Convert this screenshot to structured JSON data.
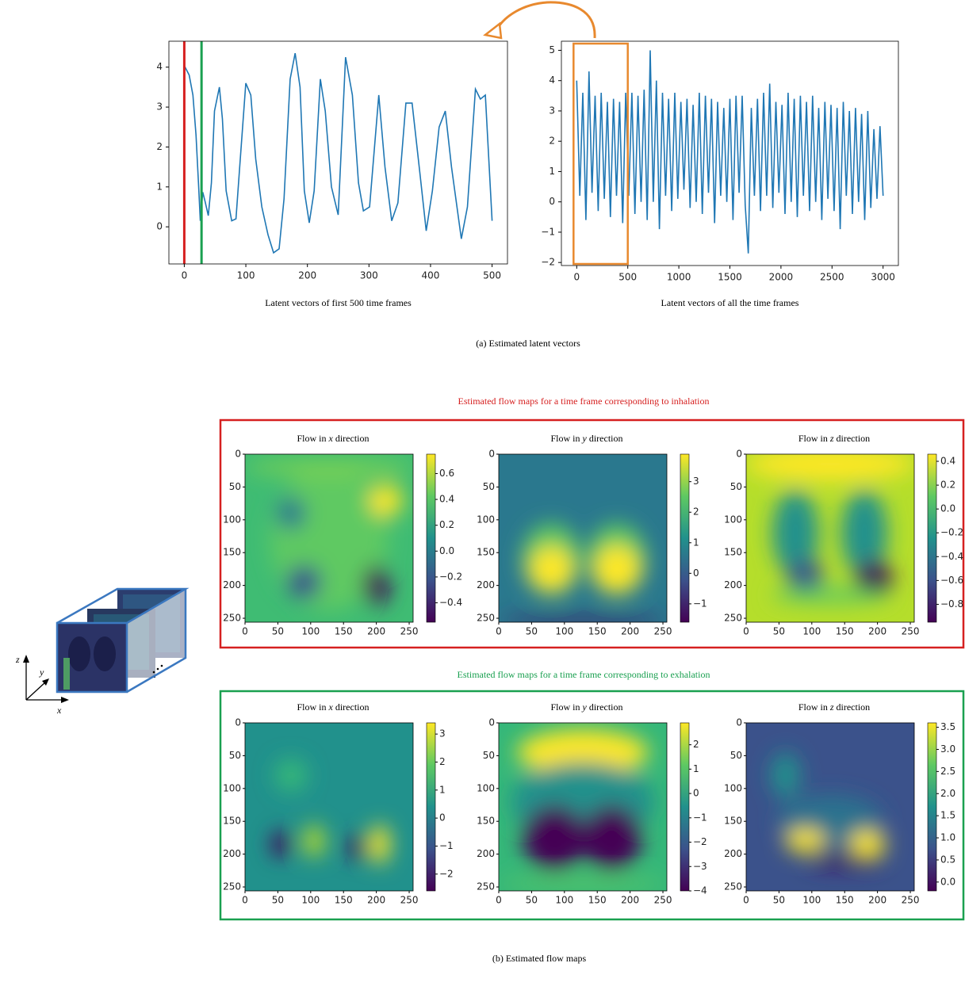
{
  "charts": [
    {
      "type": "line",
      "caption": "Latent vectors of first 500 time frames",
      "color": "#1f77b4",
      "xlim": [
        -25,
        525
      ],
      "ylim": [
        -0.93,
        4.65
      ],
      "xticks": [
        0,
        100,
        200,
        300,
        400,
        500
      ],
      "yticks": [
        0,
        1,
        2,
        3,
        4
      ],
      "x": [
        0,
        8,
        14,
        19,
        23,
        26,
        30,
        34,
        39,
        44,
        49,
        57,
        62,
        68,
        77,
        84,
        90,
        100,
        108,
        116,
        126,
        136,
        145,
        154,
        162,
        172,
        180,
        188,
        195,
        203,
        211,
        221,
        229,
        239,
        250,
        262,
        273,
        283,
        291,
        301,
        316,
        326,
        337,
        347,
        360,
        370,
        383,
        393,
        403,
        414,
        424,
        434,
        450,
        460,
        473,
        481,
        489,
        500
      ],
      "values": [
        4.04,
        3.8,
        3.3,
        2.3,
        1.1,
        0.15,
        0.87,
        0.62,
        0.28,
        1.1,
        2.9,
        3.5,
        2.7,
        0.9,
        0.15,
        0.2,
        1.5,
        3.6,
        3.3,
        1.7,
        0.5,
        -0.2,
        -0.65,
        -0.55,
        0.7,
        3.7,
        4.35,
        3.5,
        0.9,
        0.1,
        0.9,
        3.7,
        2.9,
        1.0,
        0.3,
        4.25,
        3.3,
        1.1,
        0.4,
        0.5,
        3.3,
        1.5,
        0.15,
        0.6,
        3.1,
        3.1,
        1.3,
        -0.1,
        0.9,
        2.5,
        2.9,
        1.5,
        -0.3,
        0.5,
        3.45,
        3.2,
        3.3,
        0.15
      ],
      "markers": [
        {
          "x": 0,
          "color": "#d62020"
        },
        {
          "x": 28,
          "color": "#1aa050"
        }
      ]
    },
    {
      "type": "line",
      "caption": "Latent vectors of all the time frames",
      "color": "#1f77b4",
      "xlim": [
        -150,
        3150
      ],
      "ylim": [
        -2.1,
        5.3
      ],
      "xticks": [
        0,
        500,
        1000,
        1500,
        2000,
        2500,
        3000
      ],
      "yticks": [
        {
          "value": -2,
          "label": "−2"
        },
        {
          "value": -1,
          "label": "−1"
        },
        0,
        1,
        2,
        3,
        4,
        5
      ],
      "x": [
        0,
        30,
        60,
        90,
        120,
        150,
        180,
        210,
        240,
        270,
        300,
        330,
        360,
        390,
        420,
        450,
        480,
        510,
        540,
        570,
        600,
        630,
        660,
        690,
        720,
        750,
        780,
        810,
        840,
        870,
        900,
        930,
        960,
        990,
        1020,
        1050,
        1080,
        1110,
        1140,
        1170,
        1200,
        1230,
        1260,
        1290,
        1320,
        1350,
        1380,
        1410,
        1440,
        1470,
        1500,
        1530,
        1560,
        1590,
        1620,
        1650,
        1680,
        1710,
        1740,
        1770,
        1800,
        1830,
        1860,
        1890,
        1920,
        1950,
        1980,
        2010,
        2040,
        2070,
        2100,
        2130,
        2160,
        2190,
        2220,
        2250,
        2280,
        2310,
        2340,
        2370,
        2400,
        2430,
        2460,
        2490,
        2520,
        2550,
        2580,
        2610,
        2640,
        2670,
        2700,
        2730,
        2760,
        2790,
        2820,
        2850,
        2880,
        2910,
        2940,
        2970,
        3000
      ],
      "values": [
        4.0,
        0.2,
        3.6,
        -0.6,
        4.3,
        0.3,
        3.5,
        -0.3,
        3.6,
        0.1,
        3.3,
        -0.5,
        3.4,
        0.2,
        3.3,
        -0.7,
        3.6,
        0.2,
        3.6,
        -0.4,
        3.5,
        0.0,
        3.7,
        -0.6,
        5.0,
        0.0,
        4.0,
        -0.9,
        3.6,
        0.2,
        3.4,
        -0.3,
        3.6,
        0.1,
        3.3,
        0.4,
        3.4,
        -0.2,
        3.2,
        0.0,
        3.6,
        -0.4,
        3.5,
        0.3,
        3.4,
        -0.7,
        3.3,
        0.2,
        3.1,
        0.0,
        3.4,
        -0.6,
        3.5,
        0.3,
        3.5,
        -0.1,
        -1.7,
        3.1,
        0.2,
        3.4,
        -0.3,
        3.6,
        0.2,
        3.9,
        -0.2,
        3.3,
        0.3,
        3.2,
        -0.4,
        3.6,
        0.0,
        3.4,
        -0.5,
        3.5,
        0.2,
        3.3,
        -0.3,
        3.5,
        0.0,
        3.1,
        -0.6,
        3.3,
        0.1,
        3.2,
        -0.3,
        3.1,
        -0.9,
        3.3,
        0.2,
        3.0,
        -0.4,
        3.1,
        0.0,
        2.9,
        -0.6,
        3.0,
        -0.2,
        2.4,
        0.1,
        2.5,
        0.2
      ],
      "highlight": [
        0,
        500
      ],
      "highlight_color": "#e8892e"
    }
  ],
  "caption_a": "(a) Estimated latent vectors",
  "axes_icon": [
    "z",
    "y",
    "x"
  ],
  "image_xlim": [
    0,
    256
  ],
  "image_ylim": [
    0,
    256
  ],
  "image_ticks": [
    0,
    50,
    100,
    150,
    200,
    250
  ],
  "flow_groups": [
    {
      "title": "Estimated flow maps for a time frame corresponding to inhalation",
      "color": "#d62020",
      "panels": [
        {
          "prefix": "Flow in ",
          "axis": "x",
          "suffix": " direction",
          "clim": [
            -0.55,
            0.75
          ],
          "cticks": [
            {
              "value": -0.4,
              "label": "−0.4"
            },
            {
              "value": -0.2,
              "label": "−0.2"
            },
            {
              "value": 0,
              "label": "0.0"
            },
            0.2,
            0.4,
            0.6
          ]
        },
        {
          "prefix": "Flow in ",
          "axis": "y",
          "suffix": " direction",
          "clim": [
            -1.6,
            3.9
          ],
          "cticks": [
            {
              "value": -1,
              "label": "−1"
            },
            0,
            1,
            2,
            3
          ]
        },
        {
          "prefix": "Flow in ",
          "axis": "z",
          "suffix": " direction",
          "clim": [
            -0.95,
            0.46
          ],
          "cticks": [
            {
              "value": -0.8,
              "label": "−0.8"
            },
            {
              "value": -0.6,
              "label": "−0.6"
            },
            {
              "value": -0.4,
              "label": "−0.4"
            },
            {
              "value": -0.2,
              "label": "−0.2"
            },
            {
              "value": 0,
              "label": "0.0"
            },
            0.2,
            0.4
          ]
        }
      ]
    },
    {
      "title": "Estimated flow maps for a time frame corresponding to exhalation",
      "color": "#1aa050",
      "panels": [
        {
          "prefix": "Flow in ",
          "axis": "x",
          "suffix": " direction",
          "clim": [
            -2.6,
            3.4
          ],
          "cticks": [
            {
              "value": -2,
              "label": "−2"
            },
            {
              "value": -1,
              "label": "−1"
            },
            0,
            1,
            2,
            3
          ]
        },
        {
          "prefix": "Flow in ",
          "axis": "y",
          "suffix": " direction",
          "clim": [
            -4,
            2.9
          ],
          "cticks": [
            {
              "value": -4,
              "label": "−4"
            },
            {
              "value": -3,
              "label": "−3"
            },
            {
              "value": -2,
              "label": "−2"
            },
            {
              "value": -1,
              "label": "−1"
            },
            0,
            1,
            2
          ]
        },
        {
          "prefix": "Flow in ",
          "axis": "z",
          "suffix": " direction",
          "clim": [
            -0.2,
            3.6
          ],
          "cticks": [
            {
              "value": 0,
              "label": "0.0"
            },
            0.5,
            {
              "value": 1,
              "label": "1.0"
            },
            1.5,
            {
              "value": 2,
              "label": "2.0"
            },
            2.5,
            {
              "value": 3,
              "label": "3.0"
            },
            3.5
          ]
        }
      ]
    }
  ],
  "caption_b": "(b) Estimated flow maps"
}
